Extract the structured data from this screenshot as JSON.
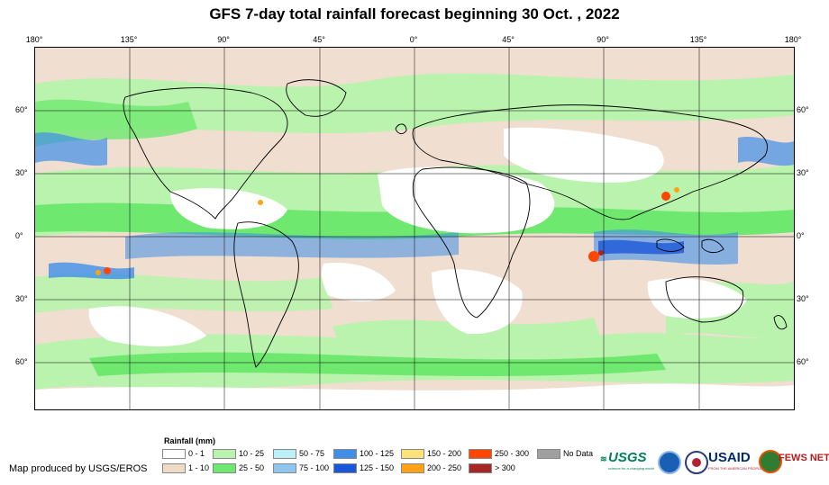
{
  "title": "GFS 7-day total rainfall forecast beginning 30 Oct. , 2022",
  "axes": {
    "lon_ticks": [
      "180°",
      "135°",
      "90°",
      "45°",
      "0°",
      "45°",
      "90°",
      "135°",
      "180°"
    ],
    "lat_ticks_left": [
      "60°",
      "30°",
      "0°",
      "30°",
      "60°"
    ],
    "lat_ticks_right": [
      "60°",
      "30°",
      "0°",
      "30°",
      "60°"
    ]
  },
  "legend": {
    "title": "Rainfall (mm)",
    "items": [
      {
        "label": "0 - 1",
        "color": "#ffffff"
      },
      {
        "label": "1 - 10",
        "color": "#efdbc3"
      },
      {
        "label": "10 - 25",
        "color": "#b9f3ad"
      },
      {
        "label": "25 - 50",
        "color": "#6fe86f"
      },
      {
        "label": "50 - 75",
        "color": "#bdeff7"
      },
      {
        "label": "75 - 100",
        "color": "#8ec6f0"
      },
      {
        "label": "100 - 125",
        "color": "#3f8ee8"
      },
      {
        "label": "125 - 150",
        "color": "#1c56d8"
      },
      {
        "label": "150 - 200",
        "color": "#ffe37a"
      },
      {
        "label": "200 - 250",
        "color": "#ffa316"
      },
      {
        "label": "250 - 300",
        "color": "#ff4500"
      },
      {
        "label": "> 300",
        "color": "#a82626"
      },
      {
        "label": "No Data",
        "color": "#a0a0a0"
      }
    ]
  },
  "credit": "Map produced by USGS/EROS",
  "logos": {
    "usgs": "USGS",
    "usgs_tagline": "science for a changing world",
    "usaid": "USAID",
    "usaid_tagline": "FROM THE AMERICAN PEOPLE",
    "fewsnet": "FEWS NET"
  },
  "colors": {
    "green_light": "#b9f3ad",
    "green": "#6fe86f",
    "beige": "#efdbc3",
    "blue": "#3f8ee8",
    "blue_dark": "#1c56d8",
    "red": "#ff4500"
  }
}
